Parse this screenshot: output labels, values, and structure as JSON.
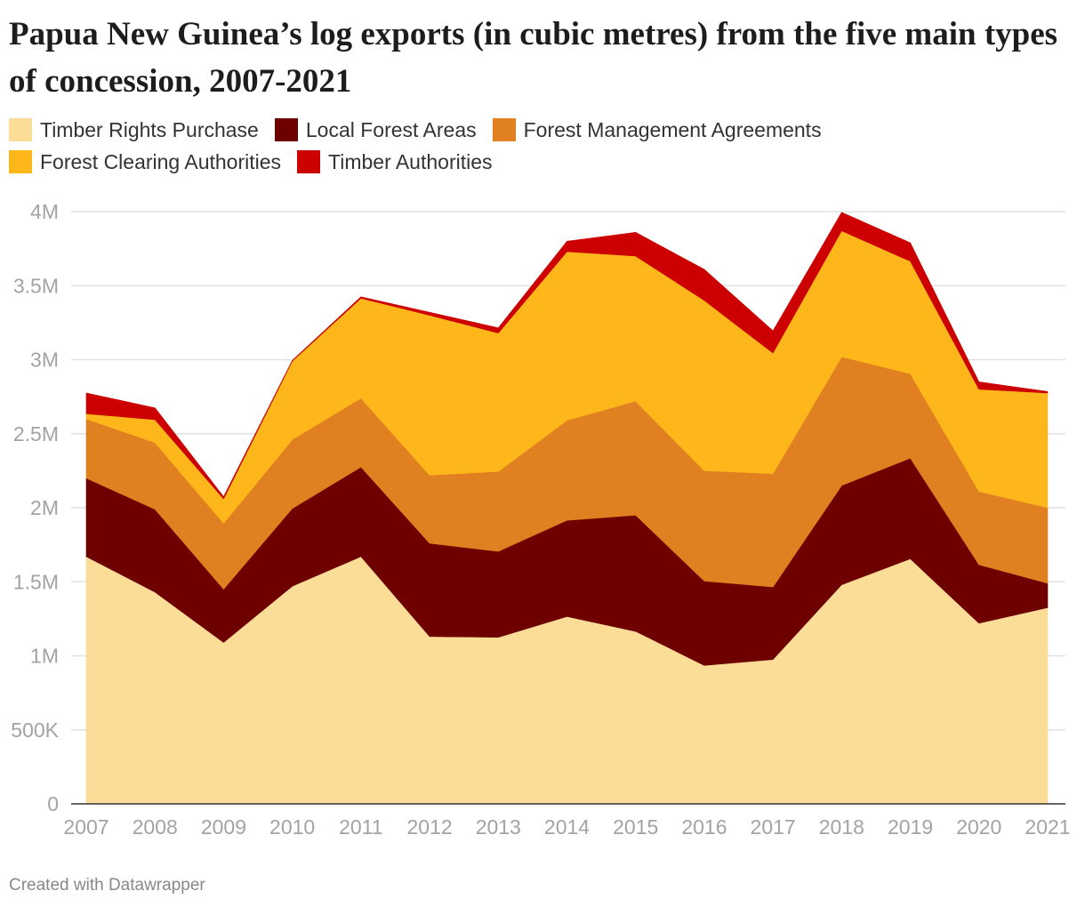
{
  "title": "Papua New Guinea’s log exports (in cubic metres) from the five main types of concession, 2007-2021",
  "footer": "Created with Datawrapper",
  "chart_data": {
    "type": "area",
    "stacked": true,
    "x": [
      2007,
      2008,
      2009,
      2010,
      2011,
      2012,
      2013,
      2014,
      2015,
      2016,
      2017,
      2018,
      2019,
      2020,
      2021
    ],
    "x_tick_labels": [
      "2007",
      "2008",
      "2009",
      "2010",
      "2011",
      "2012",
      "2013",
      "2014",
      "2015",
      "2016",
      "2017",
      "2018",
      "2019",
      "2020",
      "2021"
    ],
    "y_ticks": [
      0,
      500000,
      1000000,
      1500000,
      2000000,
      2500000,
      3000000,
      3500000,
      4000000
    ],
    "y_tick_labels": [
      "0",
      "500K",
      "1M",
      "1.5M",
      "2M",
      "2.5M",
      "3M",
      "3.5M",
      "4M"
    ],
    "ylim": [
      0,
      4000000
    ],
    "grid": true,
    "legend_position": "top",
    "series": [
      {
        "name": "Timber Rights Purchase",
        "color": "#fbdd98",
        "values": [
          1670000,
          1430000,
          1090000,
          1470000,
          1670000,
          1130000,
          1125000,
          1265000,
          1165000,
          935000,
          975000,
          1480000,
          1655000,
          1220000,
          1325000
        ]
      },
      {
        "name": "Local Forest Areas",
        "color": "#6e0000",
        "values": [
          530000,
          560000,
          360000,
          525000,
          605000,
          630000,
          580000,
          650000,
          785000,
          570000,
          490000,
          670000,
          680000,
          395000,
          165000
        ]
      },
      {
        "name": "Forest Management Agreements",
        "color": "#e08020",
        "values": [
          400000,
          450000,
          445000,
          465000,
          465000,
          460000,
          540000,
          675000,
          770000,
          745000,
          765000,
          870000,
          570000,
          495000,
          510000
        ]
      },
      {
        "name": "Forest Clearing Authorities",
        "color": "#fdb71b",
        "values": [
          35000,
          155000,
          165000,
          530000,
          675000,
          1080000,
          935000,
          1140000,
          980000,
          1150000,
          815000,
          850000,
          760000,
          690000,
          775000
        ]
      },
      {
        "name": "Timber Authorities",
        "color": "#cc0000",
        "values": [
          140000,
          80000,
          15000,
          5000,
          10000,
          20000,
          35000,
          70000,
          160000,
          210000,
          150000,
          125000,
          125000,
          50000,
          10000
        ]
      }
    ]
  }
}
